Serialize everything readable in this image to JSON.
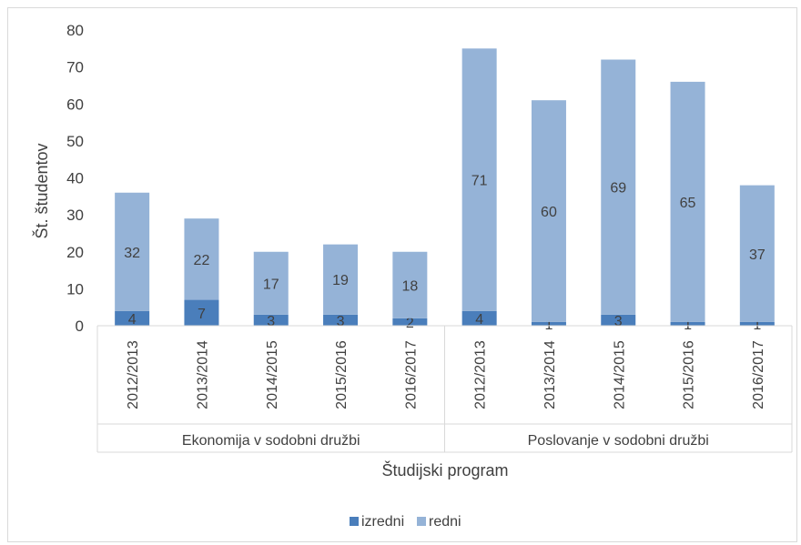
{
  "chart_data": {
    "type": "bar",
    "stacked": true,
    "ylabel": "Št. študentov",
    "xlabel": "Študijski program",
    "ylim": [
      0,
      80
    ],
    "yticks": [
      0,
      10,
      20,
      30,
      40,
      50,
      60,
      70,
      80
    ],
    "grid": false,
    "legend_position": "bottom",
    "groups": [
      {
        "name": "Ekonomija v sodobni družbi",
        "categories": [
          "2012/2013",
          "2013/2014",
          "2014/2015",
          "2015/2016",
          "2016/2017"
        ]
      },
      {
        "name": "Poslovanje v sodobni družbi",
        "categories": [
          "2012/2013",
          "2013/2014",
          "2014/2015",
          "2015/2016",
          "2016/2017"
        ]
      }
    ],
    "series": [
      {
        "name": "izredni",
        "color": "#4a7ebb",
        "values": [
          4,
          7,
          3,
          3,
          2,
          4,
          1,
          3,
          1,
          1
        ]
      },
      {
        "name": "redni",
        "color": "#95b3d7",
        "values": [
          32,
          22,
          17,
          19,
          18,
          71,
          60,
          69,
          65,
          37
        ]
      }
    ]
  }
}
